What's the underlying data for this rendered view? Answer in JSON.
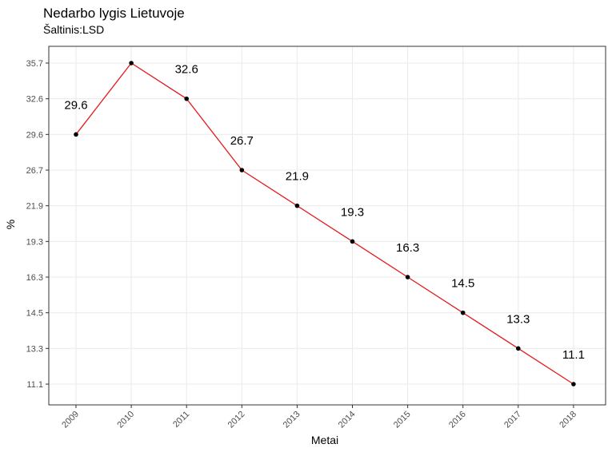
{
  "chart_data": {
    "type": "line",
    "title": "Nedarbo lygis Lietuvoje",
    "subtitle": "Šaltinis:LSD",
    "xlabel": "Metai",
    "ylabel": "%",
    "x": [
      "2009",
      "2010",
      "2011",
      "2012",
      "2013",
      "2014",
      "2015",
      "2016",
      "2017",
      "2018"
    ],
    "point_labels": [
      "29.6",
      "",
      "32.6",
      "26.7",
      "21.9",
      "19.3",
      "16.3",
      "14.5",
      "13.3",
      "11.1"
    ],
    "y_ticks": [
      "35.7",
      "32.6",
      "29.6",
      "26.7",
      "21.9",
      "19.3",
      "16.3",
      "14.5",
      "13.3",
      "11.1"
    ],
    "values": [
      29.6,
      35.7,
      32.6,
      26.7,
      21.9,
      19.3,
      16.3,
      14.5,
      13.3,
      11.1
    ],
    "y_scale": "discrete",
    "grid": true,
    "line_color": "#e41a1c",
    "point_color": "#000000",
    "panel_border_color": "#333333",
    "grid_color": "#ebebeb"
  }
}
